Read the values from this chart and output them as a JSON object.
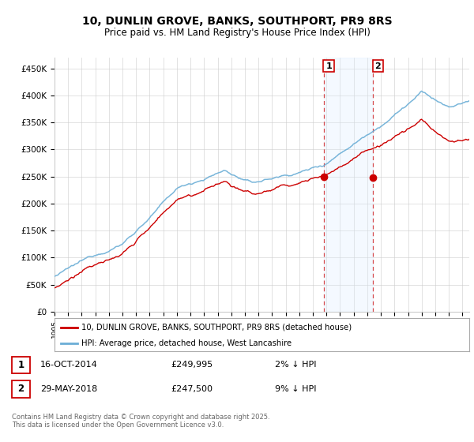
{
  "title": "10, DUNLIN GROVE, BANKS, SOUTHPORT, PR9 8RS",
  "subtitle": "Price paid vs. HM Land Registry's House Price Index (HPI)",
  "ylim": [
    0,
    470000
  ],
  "yticks": [
    0,
    50000,
    100000,
    150000,
    200000,
    250000,
    300000,
    350000,
    400000,
    450000
  ],
  "yticklabels": [
    "£0",
    "£50K",
    "£100K",
    "£150K",
    "£200K",
    "£250K",
    "£300K",
    "£350K",
    "£400K",
    "£450K"
  ],
  "xlim_start": 1995,
  "xlim_end": 2025.5,
  "hpi_color": "#6baed6",
  "price_color": "#cc0000",
  "purchase1_date_num": 2014.79,
  "purchase1_price": 249995,
  "purchase2_date_num": 2018.41,
  "purchase2_price": 247500,
  "shade_color": "#ddeeff",
  "vline_color": "#cc0000",
  "legend1_text": "10, DUNLIN GROVE, BANKS, SOUTHPORT, PR9 8RS (detached house)",
  "legend2_text": "HPI: Average price, detached house, West Lancashire",
  "footer": "Contains HM Land Registry data © Crown copyright and database right 2025.\nThis data is licensed under the Open Government Licence v3.0.",
  "background_color": "#ffffff",
  "grid_color": "#cccccc",
  "label1_date": "16-OCT-2014",
  "label1_price": "£249,995",
  "label1_pct": "2% ↓ HPI",
  "label2_date": "29-MAY-2018",
  "label2_price": "£247,500",
  "label2_pct": "9% ↓ HPI"
}
